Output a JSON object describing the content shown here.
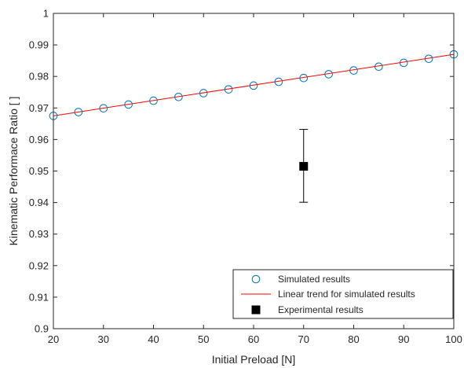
{
  "chart_data": {
    "type": "scatter",
    "title": "",
    "xlabel": "Initial Preload [N]",
    "ylabel": "Kinematic Performace Ratio [ ]",
    "xlim": [
      20,
      100
    ],
    "ylim": [
      0.9,
      1.0
    ],
    "x_ticks": [
      20,
      30,
      40,
      50,
      60,
      70,
      80,
      90,
      100
    ],
    "x_tick_labels": [
      "20",
      "30",
      "40",
      "50",
      "60",
      "70",
      "80",
      "90",
      "100"
    ],
    "y_ticks": [
      0.9,
      0.91,
      0.92,
      0.93,
      0.94,
      0.95,
      0.96,
      0.97,
      0.98,
      0.99,
      1.0
    ],
    "y_tick_labels": [
      "0.9",
      "0.91",
      "0.92",
      "0.93",
      "0.94",
      "0.95",
      "0.96",
      "0.97",
      "0.98",
      "0.99",
      "1"
    ],
    "grid": false,
    "box": true,
    "legend_position": "bottom-right",
    "series": [
      {
        "name": "Simulated results",
        "kind": "scatter",
        "marker": "open-circle",
        "color": "#0072BD",
        "x": [
          20,
          25,
          30,
          35,
          40,
          45,
          50,
          55,
          60,
          65,
          70,
          75,
          80,
          85,
          90,
          95,
          100
        ],
        "y": [
          0.9675,
          0.9687,
          0.9699,
          0.9711,
          0.9723,
          0.9735,
          0.9747,
          0.9759,
          0.9771,
          0.9783,
          0.9795,
          0.9807,
          0.9819,
          0.9831,
          0.9843,
          0.9856,
          0.987
        ]
      },
      {
        "name": "Linear trend for simulated results",
        "kind": "line",
        "color": "#FF0000",
        "x": [
          20,
          100
        ],
        "y": [
          0.9675,
          0.987
        ]
      },
      {
        "name": "Experimental results",
        "kind": "errorbar",
        "marker": "filled-square",
        "color": "#000000",
        "x": [
          70
        ],
        "y": [
          0.9515
        ],
        "y_lower": [
          0.9401
        ],
        "y_upper": [
          0.9632
        ]
      }
    ]
  }
}
